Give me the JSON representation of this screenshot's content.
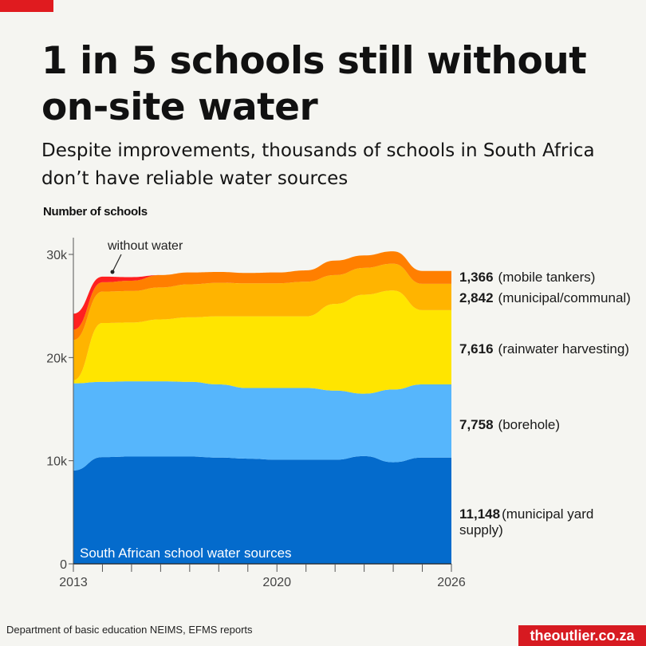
{
  "header": {
    "title": "1 in 5 schools still without on-site water",
    "subtitle": "Despite improvements, thousands of schools in South Africa don’t have reliable water sources"
  },
  "chart_data": {
    "type": "area",
    "stacked": true,
    "ylabel": "Number of schools",
    "chart_label": "South African school water sources",
    "x": [
      2013,
      2014,
      2015,
      2016,
      2017,
      2018,
      2019,
      2020,
      2021,
      2022,
      2023,
      2024,
      2025,
      2026
    ],
    "xlim": [
      2013,
      2026
    ],
    "ylim": [
      0,
      32000
    ],
    "x_ticks": [
      "2013",
      "2020",
      "2026"
    ],
    "y_ticks": [
      {
        "value": 0,
        "label": "0"
      },
      {
        "value": 10000,
        "label": "10k"
      },
      {
        "value": 20000,
        "label": "20k"
      },
      {
        "value": 30000,
        "label": "30k"
      }
    ],
    "grid": false,
    "series": [
      {
        "name": "municipal yard supply",
        "value_label": "11,148",
        "color": "#046bcc",
        "values": [
          9050,
          10350,
          10400,
          10400,
          10400,
          10300,
          10200,
          10100,
          10100,
          10100,
          10450,
          9850,
          10300,
          10300
        ]
      },
      {
        "name": "borehole",
        "value_label": "7,758",
        "color": "#56b6fc",
        "values": [
          8450,
          7300,
          7300,
          7300,
          7250,
          7100,
          6850,
          6950,
          6950,
          6700,
          6050,
          7050,
          7100,
          7100
        ]
      },
      {
        "name": "rainwater harvesting",
        "value_label": "7,616",
        "color": "#ffe500",
        "values": [
          300,
          5700,
          5700,
          6000,
          6250,
          6600,
          6950,
          6950,
          6950,
          8400,
          9600,
          9600,
          7200,
          7200
        ]
      },
      {
        "name": "municipal/communal",
        "value_label": "2,842",
        "color": "#ffb400",
        "values": [
          3900,
          3050,
          3050,
          3100,
          3200,
          3250,
          3200,
          3200,
          3350,
          2800,
          2600,
          2600,
          2550,
          2550
        ]
      },
      {
        "name": "mobile tankers",
        "value_label": "1,366",
        "color": "#ff7f00",
        "values": [
          1000,
          900,
          1000,
          1200,
          1150,
          1050,
          1000,
          1050,
          1100,
          1400,
          1200,
          1200,
          1250,
          1250
        ]
      },
      {
        "name": "without water",
        "color": "#ff2020",
        "values": [
          1550,
          550,
          350,
          0,
          0,
          0,
          0,
          0,
          0,
          0,
          0,
          0,
          0,
          0
        ]
      }
    ]
  },
  "footer": {
    "source": "Department of basic education NEIMS, EFMS reports",
    "brand": "theoutlier.co.za"
  },
  "colors": {
    "accent": "#e01b1f",
    "background": "#f5f5f1"
  }
}
